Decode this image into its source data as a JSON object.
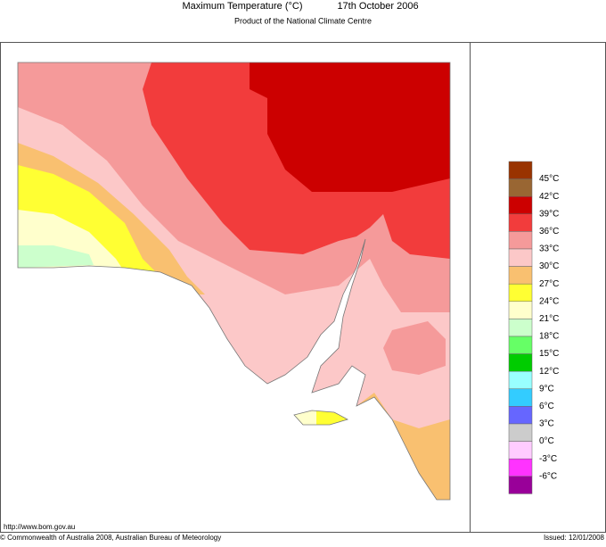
{
  "header": {
    "title": "Maximum Temperature (°C)",
    "date": "17th October 2006",
    "subtitle": "Product of the National Climate Centre"
  },
  "legend": {
    "colors": [
      "#993300",
      "#996633",
      "#cc0000",
      "#f23c3c",
      "#f59a9a",
      "#fcc8c8",
      "#f9c070",
      "#ffff33",
      "#ffffcc",
      "#ccffcc",
      "#66ff66",
      "#00cc00",
      "#99ffff",
      "#33ccff",
      "#6666ff",
      "#cccccc",
      "#ffccff",
      "#ff33ff",
      "#990099"
    ],
    "labels": [
      "45°C",
      "42°C",
      "39°C",
      "36°C",
      "33°C",
      "30°C",
      "27°C",
      "24°C",
      "21°C",
      "18°C",
      "15°C",
      "12°C",
      "9°C",
      "6°C",
      "3°C",
      "0°C",
      "-3°C",
      "-6°C"
    ]
  },
  "footer": {
    "url": "http://www.bom.gov.au",
    "copyright": "© Commonwealth of Australia 2008, Australian Bureau of Meteorology",
    "issued": "Issued: 12/01/2008"
  }
}
